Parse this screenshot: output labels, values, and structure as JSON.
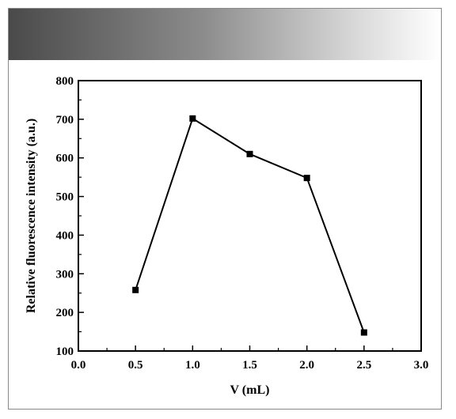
{
  "chart_data": {
    "type": "line",
    "xlabel": "V (mL)",
    "ylabel": "Relative fluorescence intensity (a.u.)",
    "xlim": [
      0.0,
      3.0
    ],
    "ylim": [
      100,
      800
    ],
    "xticks": [
      "0.0",
      "0.5",
      "1.0",
      "1.5",
      "2.0",
      "2.5",
      "3.0"
    ],
    "yticks": [
      "100",
      "200",
      "300",
      "400",
      "500",
      "600",
      "700",
      "800"
    ],
    "grid": false,
    "marker": "square",
    "series": [
      {
        "x": [
          0.5,
          1.0,
          1.5,
          2.0,
          2.5
        ],
        "y": [
          258,
          702,
          610,
          548,
          148
        ]
      }
    ],
    "colors": {
      "line": "#000000",
      "marker": "#000000"
    }
  }
}
